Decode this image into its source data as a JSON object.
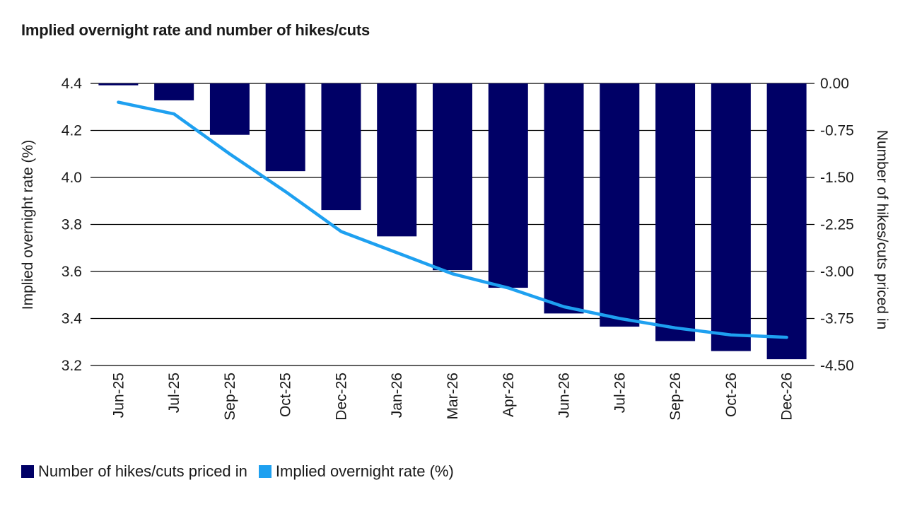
{
  "chart_data": {
    "type": "bar+line",
    "title": "Implied overnight rate and number of hikes/cuts",
    "categories": [
      "Jun-25",
      "Jul-25",
      "Sep-25",
      "Oct-25",
      "Dec-25",
      "Jan-26",
      "Mar-26",
      "Apr-26",
      "Jun-26",
      "Jul-26",
      "Sep-26",
      "Oct-26",
      "Dec-26"
    ],
    "series": [
      {
        "name": "Number of hikes/cuts priced in",
        "type": "bar",
        "axis": "right",
        "color": "#000066",
        "values": [
          -0.03,
          -0.27,
          -0.82,
          -1.4,
          -2.02,
          -2.44,
          -2.98,
          -3.26,
          -3.67,
          -3.88,
          -4.11,
          -4.27,
          -4.4
        ]
      },
      {
        "name": "Implied overnight rate (%)",
        "type": "line",
        "axis": "left",
        "color": "#1ea0f0",
        "values": [
          4.32,
          4.27,
          4.1,
          3.94,
          3.77,
          3.68,
          3.59,
          3.53,
          3.45,
          3.4,
          3.36,
          3.33,
          3.32
        ]
      }
    ],
    "y_left": {
      "label": "Implied overnight rate (%)",
      "ylim": [
        3.2,
        4.4
      ],
      "ticks": [
        "3.2",
        "3.4",
        "3.6",
        "3.8",
        "4.0",
        "4.2",
        "4.4"
      ]
    },
    "y_right": {
      "label": "Number of hikes/cuts priced in",
      "ylim": [
        -4.5,
        0
      ],
      "ticks": [
        "-4.50",
        "-3.75",
        "-3.00",
        "-2.25",
        "-1.50",
        "-0.75",
        "0.00"
      ]
    },
    "grid": true,
    "legend_position": "bottom-left"
  }
}
